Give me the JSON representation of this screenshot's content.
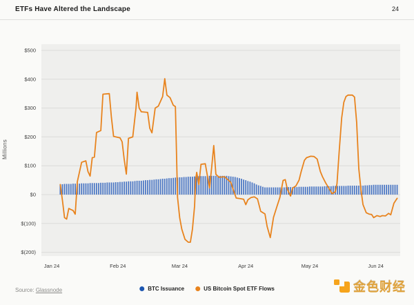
{
  "header": {
    "title": "ETFs Have Altered the Landscape",
    "page_number": "24"
  },
  "source": {
    "label": "Source:",
    "link_text": "Glassnode"
  },
  "legend": {
    "items": [
      {
        "label": "BTC Issuance",
        "color": "#1D56B0"
      },
      {
        "label": "US Bitcoin Spot ETF Flows",
        "color": "#E8831D"
      }
    ]
  },
  "branding": {
    "name": "金色财经"
  },
  "colors": {
    "page_bg": "#FAFAF8",
    "plot_bg": "#EFEFED",
    "grid": "#DBDBD9",
    "tick_text": "#3C3C3C",
    "bar_blue": "#4D78C4",
    "line_orange": "#E8831D"
  },
  "chart_data": {
    "type": "combo",
    "title": "ETFs Have Altered the Landscape",
    "xlabel": "",
    "ylabel": "Millions",
    "units": "USD millions",
    "ylim": [
      -200,
      500
    ],
    "y_tick_values": [
      500,
      400,
      300,
      200,
      100,
      0,
      -100,
      -200
    ],
    "y_ticks": [
      "$500",
      "$400",
      "$300",
      "$200",
      "$100",
      "$0",
      "$(100)",
      "$(200)"
    ],
    "x_ticks": [
      "Jan 24",
      "Feb 24",
      "Mar 24",
      "Apr 24",
      "May 24",
      "Jun 24"
    ],
    "x_tick_days": [
      0,
      31,
      60,
      91,
      121,
      152
    ],
    "x_unit": "days since Jan 1 2024",
    "grid": true,
    "legend_position": "bottom",
    "series": [
      {
        "name": "BTC Issuance",
        "type": "bar",
        "color": "#4D78C4",
        "start_day": 4,
        "step_days": 1,
        "values": [
          36,
          36,
          37,
          37,
          37,
          37,
          38,
          38,
          38,
          38,
          39,
          39,
          39,
          39,
          40,
          40,
          40,
          40,
          40,
          41,
          41,
          41,
          42,
          42,
          42,
          42,
          43,
          43,
          44,
          44,
          45,
          45,
          46,
          46,
          46,
          47,
          48,
          48,
          48,
          49,
          50,
          50,
          51,
          51,
          52,
          53,
          53,
          54,
          55,
          55,
          56,
          57,
          57,
          58,
          59,
          59,
          60,
          60,
          61,
          61,
          62,
          62,
          62,
          63,
          63,
          64,
          64,
          64,
          64,
          64,
          65,
          65,
          65,
          65,
          65,
          65,
          65,
          65,
          65,
          64,
          63,
          62,
          61,
          59,
          57,
          55,
          52,
          50,
          47,
          45,
          42,
          39,
          35,
          32,
          30,
          27,
          25,
          25,
          25,
          25,
          25,
          25,
          25,
          25,
          25,
          25,
          26,
          26,
          26,
          26,
          26,
          26,
          27,
          27,
          27,
          27,
          27,
          28,
          28,
          28,
          28,
          28,
          28,
          28,
          29,
          29,
          29,
          29,
          30,
          30,
          30,
          30,
          30,
          30,
          30,
          31,
          31,
          31,
          31,
          31,
          31,
          31,
          31,
          32,
          32,
          33,
          33,
          34,
          34,
          34,
          34,
          34,
          34,
          34,
          34,
          34,
          34,
          34,
          34
        ]
      },
      {
        "name": "US Bitcoin Spot ETF Flows",
        "type": "line",
        "color": "#E8831D",
        "points": [
          [
            4,
            35
          ],
          [
            5,
            -20
          ],
          [
            6,
            -80
          ],
          [
            7,
            -85
          ],
          [
            8,
            -48
          ],
          [
            9,
            -52
          ],
          [
            10,
            -55
          ],
          [
            11,
            -68
          ],
          [
            12,
            45
          ],
          [
            14,
            112
          ],
          [
            16,
            117
          ],
          [
            17,
            80
          ],
          [
            18,
            64
          ],
          [
            19,
            128
          ],
          [
            20,
            130
          ],
          [
            21,
            215
          ],
          [
            23,
            222
          ],
          [
            24,
            348
          ],
          [
            27,
            350
          ],
          [
            28,
            267
          ],
          [
            29,
            202
          ],
          [
            32,
            197
          ],
          [
            33,
            183
          ],
          [
            34,
            120
          ],
          [
            35,
            71
          ],
          [
            36,
            195
          ],
          [
            38,
            200
          ],
          [
            39.5,
            300
          ],
          [
            40,
            355
          ],
          [
            41,
            300
          ],
          [
            42,
            287
          ],
          [
            45,
            285
          ],
          [
            46,
            230
          ],
          [
            47,
            214
          ],
          [
            48.5,
            300
          ],
          [
            50,
            307
          ],
          [
            52,
            340
          ],
          [
            53,
            402
          ],
          [
            54,
            345
          ],
          [
            55.5,
            336
          ],
          [
            57,
            310
          ],
          [
            58,
            305
          ],
          [
            59,
            -9
          ],
          [
            60,
            -80
          ],
          [
            61,
            -120
          ],
          [
            62.5,
            -155
          ],
          [
            64,
            -165
          ],
          [
            65,
            -165
          ],
          [
            66,
            -120
          ],
          [
            67,
            -40
          ],
          [
            67.5,
            53
          ],
          [
            68,
            77
          ],
          [
            69,
            35
          ],
          [
            70,
            105
          ],
          [
            72,
            107
          ],
          [
            74,
            23
          ],
          [
            75,
            95
          ],
          [
            76,
            170
          ],
          [
            77,
            70
          ],
          [
            78.5,
            60
          ],
          [
            81,
            62
          ],
          [
            83,
            49
          ],
          [
            84,
            42
          ],
          [
            85,
            20
          ],
          [
            86.5,
            -12
          ],
          [
            88.5,
            -14
          ],
          [
            90,
            -16
          ],
          [
            91,
            -35
          ],
          [
            92,
            -18
          ],
          [
            93.5,
            -10
          ],
          [
            95,
            -8
          ],
          [
            96.5,
            -15
          ],
          [
            98,
            -58
          ],
          [
            100,
            -67
          ],
          [
            101,
            -110
          ],
          [
            102.5,
            -149
          ],
          [
            104,
            -79
          ],
          [
            105.5,
            -44
          ],
          [
            107,
            -10
          ],
          [
            108.5,
            49
          ],
          [
            109.5,
            52
          ],
          [
            110.5,
            19
          ],
          [
            112,
            -5
          ],
          [
            113,
            23
          ],
          [
            114.5,
            30
          ],
          [
            116,
            50
          ],
          [
            117,
            80
          ],
          [
            118.5,
            119
          ],
          [
            119.5,
            128
          ],
          [
            121.5,
            133
          ],
          [
            123,
            132
          ],
          [
            124.5,
            123
          ],
          [
            126,
            80
          ],
          [
            127,
            62
          ],
          [
            128.5,
            40
          ],
          [
            130,
            22
          ],
          [
            131.5,
            3
          ],
          [
            133,
            10
          ],
          [
            133.8,
            38
          ],
          [
            134.8,
            147
          ],
          [
            136,
            266
          ],
          [
            137,
            320
          ],
          [
            138,
            340
          ],
          [
            139,
            345
          ],
          [
            141,
            345
          ],
          [
            142,
            338
          ],
          [
            143,
            250
          ],
          [
            144,
            90
          ],
          [
            145,
            20
          ],
          [
            146,
            -35
          ],
          [
            147.5,
            -63
          ],
          [
            149,
            -68
          ],
          [
            150,
            -69
          ],
          [
            151,
            -80
          ],
          [
            152.5,
            -73
          ],
          [
            154,
            -76
          ],
          [
            155,
            -73
          ],
          [
            156.5,
            -74
          ],
          [
            158,
            -65
          ],
          [
            159,
            -70
          ],
          [
            160.5,
            -30
          ],
          [
            162,
            -13
          ]
        ]
      }
    ]
  }
}
